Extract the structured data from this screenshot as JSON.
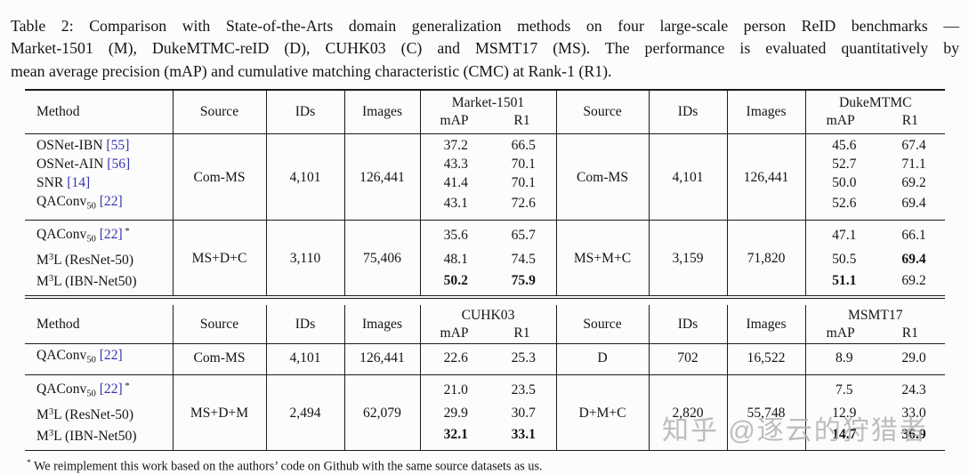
{
  "caption": {
    "lines": [
      "Table 2: Comparison with State-of-the-Arts domain generalization methods on four large-scale person ReID benchmarks —",
      "Market-1501 (M), DukeMTMC-reID (D), CUHK03 (C) and MSMT17 (MS). The performance is evaluated quantitatively by",
      "mean average precision (mAP) and cumulative matching characteristic (CMC) at Rank-1 (R1)."
    ]
  },
  "colors": {
    "citation": "#3434b4",
    "watermark": "#aeaeae",
    "rule": "#1b1b1b"
  },
  "watermark": {
    "text": "知乎 @逐云的狩猎者"
  },
  "footnote": {
    "marker": "*",
    "text": "We reimplement this work based on the authors’ code on Github with the same source datasets as us."
  },
  "tables": [
    {
      "name": "upper",
      "header": {
        "method": "Method",
        "source": "Source",
        "ids": "IDs",
        "images": "Images",
        "group1": {
          "name": "Market-1501",
          "map": "mAP",
          "r1": "R1"
        },
        "group2": {
          "name": "DukeMTMC",
          "map": "mAP",
          "r1": "R1"
        }
      },
      "blocks": [
        {
          "left": {
            "source": "Com-MS",
            "ids": "4,101",
            "images": "126,441"
          },
          "right": {
            "source": "Com-MS",
            "ids": "4,101",
            "images": "126,441"
          },
          "rows": [
            {
              "method": [
                {
                  "t": "OSNet-IBN "
                },
                {
                  "t": "[55]",
                  "s": "cite"
                }
              ],
              "g1": [
                "37.2",
                "66.5"
              ],
              "g2": [
                "45.6",
                "67.4"
              ]
            },
            {
              "method": [
                {
                  "t": "OSNet-AIN "
                },
                {
                  "t": "[56]",
                  "s": "cite"
                }
              ],
              "g1": [
                "43.3",
                "70.1"
              ],
              "g2": [
                "52.7",
                "71.1"
              ]
            },
            {
              "method": [
                {
                  "t": "SNR "
                },
                {
                  "t": "[14]",
                  "s": "cite"
                }
              ],
              "g1": [
                "41.4",
                "70.1"
              ],
              "g2": [
                "50.0",
                "69.2"
              ]
            },
            {
              "method": [
                {
                  "t": "QAConv"
                },
                {
                  "t": "50",
                  "s": "sub"
                },
                {
                  "t": " "
                },
                {
                  "t": "[22]",
                  "s": "cite"
                }
              ],
              "g1": [
                "43.1",
                "72.6"
              ],
              "g2": [
                "52.6",
                "69.4"
              ]
            }
          ]
        },
        {
          "left": {
            "source": "MS+D+C",
            "ids": "3,110",
            "images": "75,406"
          },
          "right": {
            "source": "MS+M+C",
            "ids": "3,159",
            "images": "71,820"
          },
          "rows": [
            {
              "method": [
                {
                  "t": "QAConv"
                },
                {
                  "t": "50",
                  "s": "sub"
                },
                {
                  "t": " "
                },
                {
                  "t": "[22]",
                  "s": "cite"
                },
                {
                  "t": " *",
                  "s": "sup"
                }
              ],
              "g1": [
                "35.6",
                "65.7"
              ],
              "g2": [
                "47.1",
                "66.1"
              ]
            },
            {
              "method": [
                {
                  "t": "M"
                },
                {
                  "t": "3",
                  "s": "sup"
                },
                {
                  "t": "L (ResNet-50)"
                }
              ],
              "g1": [
                "48.1",
                "74.5"
              ],
              "g2": [
                "50.5",
                {
                  "v": "69.4",
                  "b": true
                }
              ]
            },
            {
              "method": [
                {
                  "t": "M"
                },
                {
                  "t": "3",
                  "s": "sup"
                },
                {
                  "t": "L (IBN-Net50)"
                }
              ],
              "g1": [
                {
                  "v": "50.2",
                  "b": true
                },
                {
                  "v": "75.9",
                  "b": true
                }
              ],
              "g2": [
                {
                  "v": "51.1",
                  "b": true
                },
                "69.2"
              ]
            }
          ]
        }
      ]
    },
    {
      "name": "lower",
      "header": {
        "method": "Method",
        "source": "Source",
        "ids": "IDs",
        "images": "Images",
        "group1": {
          "name": "CUHK03",
          "map": "mAP",
          "r1": "R1"
        },
        "group2": {
          "name": "MSMT17",
          "map": "mAP",
          "r1": "R1"
        }
      },
      "blocks": [
        {
          "left": {
            "source": "Com-MS",
            "ids": "4,101",
            "images": "126,441"
          },
          "right": {
            "source": "D",
            "ids": "702",
            "images": "16,522"
          },
          "rows": [
            {
              "method": [
                {
                  "t": "QAConv"
                },
                {
                  "t": "50",
                  "s": "sub"
                },
                {
                  "t": " "
                },
                {
                  "t": "[22]",
                  "s": "cite"
                }
              ],
              "g1": [
                "22.6",
                "25.3"
              ],
              "g2": [
                "8.9",
                "29.0"
              ]
            }
          ]
        },
        {
          "left": {
            "source": "MS+D+M",
            "ids": "2,494",
            "images": "62,079"
          },
          "right": {
            "source": "D+M+C",
            "ids": "2,820",
            "images": "55,748"
          },
          "rows": [
            {
              "method": [
                {
                  "t": "QAConv"
                },
                {
                  "t": "50",
                  "s": "sub"
                },
                {
                  "t": " "
                },
                {
                  "t": "[22]",
                  "s": "cite"
                },
                {
                  "t": " *",
                  "s": "sup"
                }
              ],
              "g1": [
                "21.0",
                "23.5"
              ],
              "g2": [
                "7.5",
                "24.3"
              ]
            },
            {
              "method": [
                {
                  "t": "M"
                },
                {
                  "t": "3",
                  "s": "sup"
                },
                {
                  "t": "L (ResNet-50)"
                }
              ],
              "g1": [
                "29.9",
                "30.7"
              ],
              "g2": [
                "12.9",
                "33.0"
              ]
            },
            {
              "method": [
                {
                  "t": "M"
                },
                {
                  "t": "3",
                  "s": "sup"
                },
                {
                  "t": "L (IBN-Net50)"
                }
              ],
              "g1": [
                {
                  "v": "32.1",
                  "b": true
                },
                {
                  "v": "33.1",
                  "b": true
                }
              ],
              "g2": [
                {
                  "v": "14.7",
                  "b": true
                },
                {
                  "v": "36.9",
                  "b": true
                }
              ]
            }
          ]
        }
      ]
    }
  ]
}
